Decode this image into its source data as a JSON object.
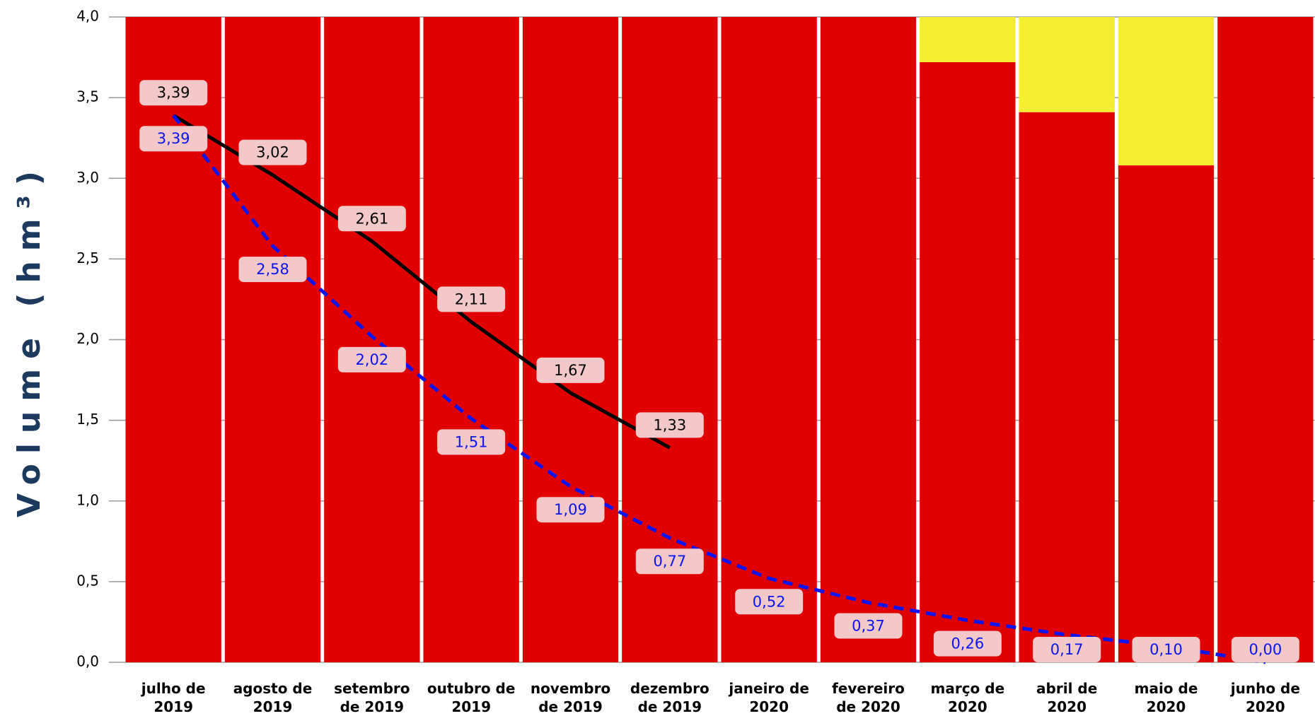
{
  "chart_data": {
    "type": "bar",
    "stacked": true,
    "ylabel": "Volume (hm³)",
    "categories": [
      "julho de 2019",
      "agosto de 2019",
      "setembro de 2019",
      "outubro de 2019",
      "novembro de 2019",
      "dezembro de 2019",
      "janeiro de 2020",
      "fevereiro de 2020",
      "março de 2020",
      "abril de 2020",
      "maio de 2020",
      "junho de 2020"
    ],
    "series": [
      {
        "color": "#e10000",
        "values": [
          4.0,
          4.0,
          4.0,
          4.0,
          4.0,
          4.0,
          4.0,
          4.0,
          3.72,
          3.41,
          3.08,
          4.0
        ]
      },
      {
        "color": "#f4ee30",
        "values": [
          0,
          0,
          0,
          0,
          0,
          0,
          0,
          0,
          0.28,
          0.59,
          0.92,
          0
        ]
      }
    ],
    "lines": [
      {
        "color": "#000000",
        "dashed": false,
        "label_position": "above",
        "values": [
          3.39,
          3.02,
          2.61,
          2.11,
          1.67,
          1.33,
          null,
          null,
          null,
          null,
          null,
          null
        ],
        "value_labels": [
          "3,39",
          "3,02",
          "2,61",
          "2,11",
          "1,67",
          "1,33",
          null,
          null,
          null,
          null,
          null,
          null
        ]
      },
      {
        "color": "#0a14f0",
        "dashed": true,
        "label_position": "below",
        "values": [
          3.39,
          2.58,
          2.02,
          1.51,
          1.09,
          0.77,
          0.52,
          0.37,
          0.26,
          0.17,
          0.1,
          0.0
        ],
        "value_labels": [
          "3,39",
          "2,58",
          "2,02",
          "1,51",
          "1,09",
          "0,77",
          "0,52",
          "0,37",
          "0,26",
          "0,17",
          "0,10",
          "0,00"
        ]
      }
    ],
    "ylim": [
      0,
      4.0
    ],
    "yticks": [
      {
        "value": 0,
        "label": "0,0"
      },
      {
        "value": 0.5,
        "label": "0,5"
      },
      {
        "value": 1.0,
        "label": "1,0"
      },
      {
        "value": 1.5,
        "label": "1,5"
      },
      {
        "value": 2.0,
        "label": "2,0"
      },
      {
        "value": 2.5,
        "label": "2,5"
      },
      {
        "value": 3.0,
        "label": "3,0"
      },
      {
        "value": 3.5,
        "label": "3,5"
      },
      {
        "value": 4.0,
        "label": "4,0"
      }
    ],
    "grid": true
  }
}
